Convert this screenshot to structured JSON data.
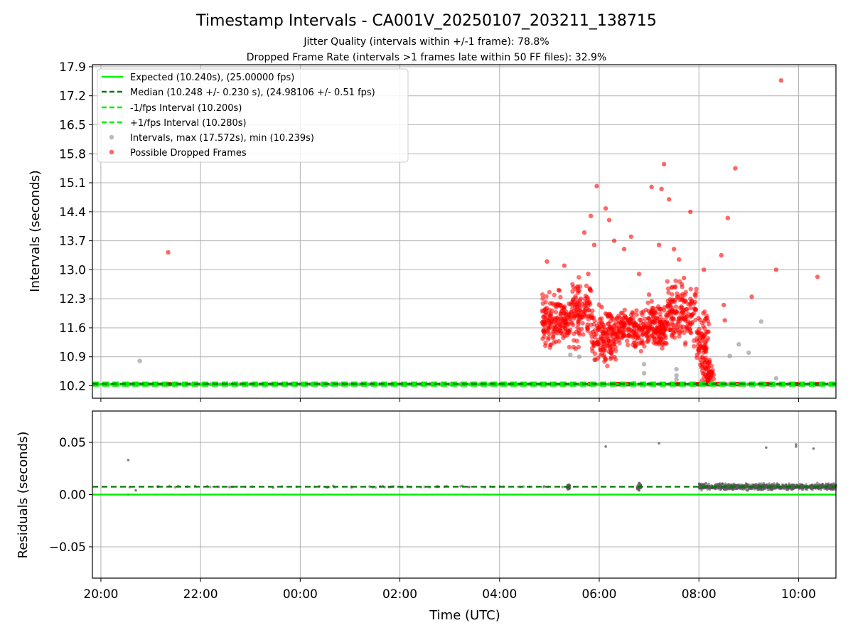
{
  "chart_data": [
    {
      "type": "scatter",
      "title": "Timestamp Intervals - CA001V_20250107_203211_138715",
      "subtitle_lines": [
        "Jitter Quality (intervals within +/-1 frame): 78.8%",
        "Dropped Frame Rate (intervals >1 frames late within 50 FF files): 32.9%"
      ],
      "ylabel": "Intervals (seconds)",
      "xlabel": "",
      "xlim_hours": [
        19.83,
        34.75
      ],
      "ylim": [
        9.9,
        17.95
      ],
      "y_ticks": [
        10.2,
        10.9,
        11.6,
        12.3,
        13.0,
        13.7,
        14.4,
        15.1,
        15.8,
        16.5,
        17.2,
        17.9
      ],
      "y_tick_labels": [
        "10.2",
        "10.9",
        "11.6",
        "12.3",
        "13.0",
        "13.7",
        "14.4",
        "15.1",
        "15.8",
        "16.5",
        "17.2",
        "17.9"
      ],
      "grid": true,
      "legend_position": "upper-left",
      "legend": [
        "Expected (10.240s), (25.00000 fps)",
        "Median (10.248 +/- 0.230 s), (24.98106 +/- 0.51 fps)",
        "-1/fps Interval (10.200s)",
        "+1/fps Interval (10.280s)",
        "Intervals, max (17.572s), min (10.239s)",
        "Possible Dropped Frames"
      ],
      "lines": {
        "expected": 10.24,
        "median": 10.248,
        "minus_one_frame": 10.2,
        "plus_one_frame": 10.28
      },
      "intervals_points": [
        [
          20.78,
          10.8
        ],
        [
          20.55,
          10.24
        ],
        [
          29.42,
          10.95
        ],
        [
          30.9,
          10.72
        ],
        [
          30.9,
          10.5
        ],
        [
          30.7,
          10.26
        ],
        [
          31.55,
          10.45
        ],
        [
          31.55,
          10.6
        ],
        [
          31.55,
          10.35
        ],
        [
          32.1,
          11.4
        ],
        [
          32.62,
          10.92
        ],
        [
          32.8,
          11.2
        ],
        [
          33.0,
          11.0
        ],
        [
          33.55,
          10.38
        ],
        [
          33.25,
          11.75
        ],
        [
          29.6,
          10.9
        ],
        [
          31.0,
          10.24
        ]
      ],
      "dropped_points": [
        [
          21.35,
          13.42
        ],
        [
          29.95,
          15.02
        ],
        [
          30.13,
          14.48
        ],
        [
          29.83,
          14.3
        ],
        [
          31.25,
          14.95
        ],
        [
          31.05,
          15.0
        ],
        [
          32.73,
          15.45
        ],
        [
          33.65,
          17.57
        ],
        [
          33.55,
          13.0
        ],
        [
          34.38,
          12.83
        ],
        [
          32.58,
          14.25
        ],
        [
          32.45,
          13.35
        ],
        [
          32.5,
          12.15
        ],
        [
          32.52,
          11.78
        ],
        [
          33.06,
          12.35
        ],
        [
          29.78,
          12.9
        ],
        [
          28.95,
          13.2
        ],
        [
          28.9,
          11.7
        ],
        [
          29.2,
          12.5
        ],
        [
          29.3,
          13.1
        ],
        [
          29.5,
          12.0
        ],
        [
          29.7,
          13.9
        ],
        [
          29.9,
          13.6
        ],
        [
          30.05,
          12.1
        ],
        [
          30.2,
          14.2
        ],
        [
          30.3,
          13.7
        ],
        [
          30.5,
          13.5
        ],
        [
          30.58,
          11.4
        ],
        [
          30.64,
          13.8
        ],
        [
          30.8,
          12.9
        ],
        [
          31.0,
          12.4
        ],
        [
          31.2,
          13.6
        ],
        [
          31.3,
          15.55
        ],
        [
          31.4,
          14.7
        ],
        [
          31.5,
          13.5
        ],
        [
          31.6,
          13.25
        ],
        [
          31.83,
          14.4
        ],
        [
          31.7,
          12.8
        ],
        [
          31.92,
          12.4
        ],
        [
          32.1,
          13.0
        ]
      ],
      "dropped_bands": [
        {
          "from": 28.85,
          "to": 29.45,
          "center": 11.75,
          "spread": 0.85,
          "count": 170
        },
        {
          "from": 29.45,
          "to": 29.85,
          "center": 12.0,
          "spread": 1.0,
          "count": 110
        },
        {
          "from": 29.85,
          "to": 30.35,
          "center": 11.4,
          "spread": 0.9,
          "count": 150
        },
        {
          "from": 30.35,
          "to": 31.35,
          "center": 11.6,
          "spread": 0.75,
          "count": 290
        },
        {
          "from": 31.35,
          "to": 31.95,
          "center": 11.95,
          "spread": 0.95,
          "count": 160
        },
        {
          "from": 31.95,
          "to": 32.2,
          "center": 11.3,
          "spread": 0.9,
          "count": 70
        }
      ],
      "dropped_baseline_runs": [
        [
          21.25,
          21.4
        ],
        [
          29.05,
          29.12
        ],
        [
          29.8,
          29.9
        ],
        [
          30.32,
          30.42
        ],
        [
          30.55,
          30.7
        ],
        [
          31.55,
          31.62
        ],
        [
          31.85,
          32.03
        ],
        [
          32.15,
          32.55
        ],
        [
          32.75,
          32.9
        ],
        [
          33.25,
          33.5
        ],
        [
          33.85,
          34.0
        ],
        [
          34.28,
          34.42
        ]
      ]
    },
    {
      "type": "scatter",
      "title": "",
      "ylabel": "Residuals (seconds)",
      "xlabel": "Time (UTC)",
      "xlim_hours": [
        19.83,
        34.75
      ],
      "ylim": [
        -0.08,
        0.08
      ],
      "y_ticks": [
        -0.05,
        0.0,
        0.05
      ],
      "y_tick_labels": [
        "−0.05",
        "0.00",
        "0.05"
      ],
      "x_ticks_hours": [
        20,
        22,
        24,
        26,
        28,
        30,
        32,
        34
      ],
      "x_tick_labels": [
        "20:00",
        "22:00",
        "00:00",
        "02:00",
        "04:00",
        "06:00",
        "08:00",
        "10:00"
      ],
      "grid": true,
      "lines": {
        "zero": 0.0,
        "median": 0.0075
      },
      "outlier_points": [
        [
          20.55,
          0.033
        ],
        [
          20.55,
          0.0
        ],
        [
          20.7,
          0.004
        ],
        [
          30.13,
          0.046
        ],
        [
          31.2,
          0.049
        ],
        [
          33.35,
          0.045
        ],
        [
          33.95,
          0.048
        ],
        [
          33.95,
          0.046
        ],
        [
          34.3,
          0.044
        ],
        [
          29.37,
          0.005
        ],
        [
          29.37,
          0.009
        ],
        [
          30.8,
          0.004
        ],
        [
          30.8,
          0.011
        ]
      ],
      "residual_bands": [
        {
          "from": 20.55,
          "to": 29.4,
          "center": 0.0075,
          "spread": 0.0012,
          "count": 70
        },
        {
          "from": 32.0,
          "to": 34.75,
          "center": 0.0075,
          "spread": 0.004,
          "count": 900
        }
      ]
    }
  ],
  "colors": {
    "expected": "#00ee00",
    "median": "#007700",
    "interval_gray": "#8c8c8c",
    "dropped_red": "#ff0000",
    "grid": "#b0b0b0"
  }
}
